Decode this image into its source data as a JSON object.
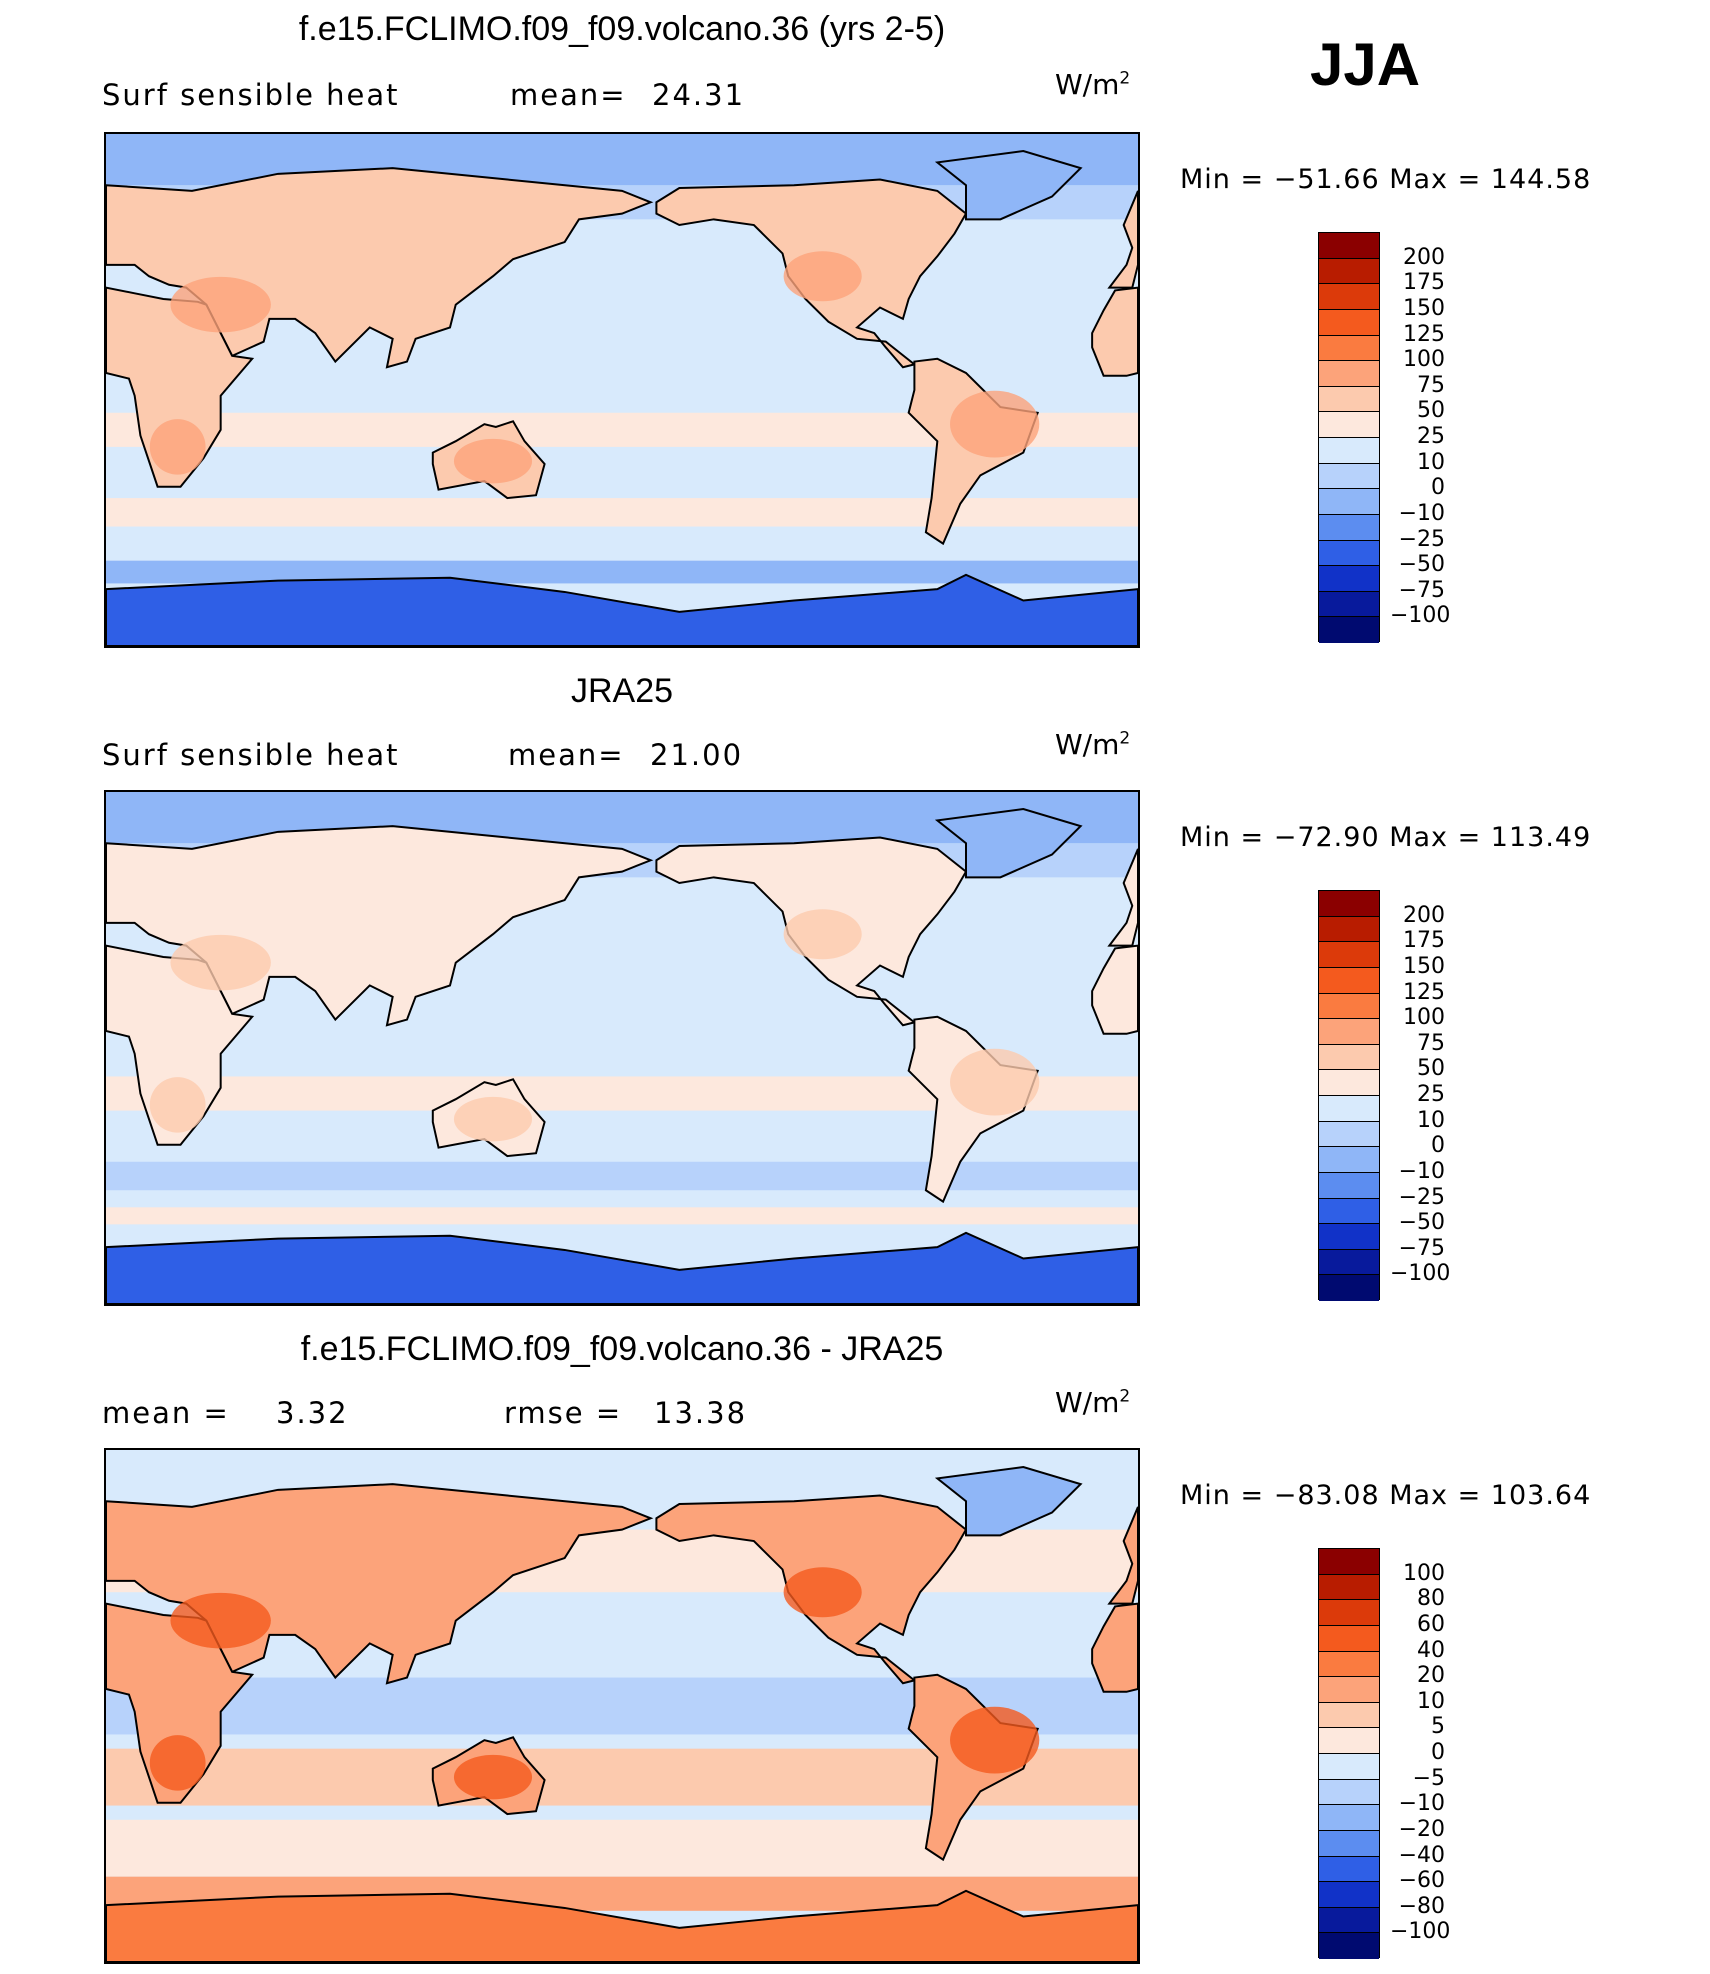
{
  "season": "JJA",
  "panels": [
    {
      "title": "f.e15.FCLIMO.f09_f09.volcano.36 (yrs 2-5)",
      "left_label": "Surf  sensible  heat",
      "stat_label": "mean=",
      "stat_value": "24.31",
      "unit_base": "W/m",
      "unit_exp": "2",
      "min_max": "Min  =  −51.66  Max  =  144.58",
      "colorbar": {
        "labels": [
          "200",
          "175",
          "150",
          "125",
          "100",
          "75",
          "50",
          "25",
          "10",
          "0",
          "−10",
          "−25",
          "−50",
          "−75",
          "−100"
        ],
        "colors": [
          "#8b0000",
          "#b81c00",
          "#dc3a0a",
          "#f45a1e",
          "#fa7b40",
          "#fca37a",
          "#fccaae",
          "#fde8dd",
          "#d8eafc",
          "#b7d2fb",
          "#8fb6f7",
          "#5c8df0",
          "#2f5fe6",
          "#1132c8",
          "#081a9c",
          "#000a70"
        ]
      }
    },
    {
      "title": "JRA25",
      "left_label": "Surf  sensible  heat",
      "stat_label": "mean=",
      "stat_value": "21.00",
      "unit_base": "W/m",
      "unit_exp": "2",
      "min_max": "Min  =  −72.90  Max  =  113.49",
      "colorbar": {
        "labels": [
          "200",
          "175",
          "150",
          "125",
          "100",
          "75",
          "50",
          "25",
          "10",
          "0",
          "−10",
          "−25",
          "−50",
          "−75",
          "−100"
        ],
        "colors": [
          "#8b0000",
          "#b81c00",
          "#dc3a0a",
          "#f45a1e",
          "#fa7b40",
          "#fca37a",
          "#fccaae",
          "#fde8dd",
          "#d8eafc",
          "#b7d2fb",
          "#8fb6f7",
          "#5c8df0",
          "#2f5fe6",
          "#1132c8",
          "#081a9c",
          "#000a70"
        ]
      }
    },
    {
      "title": "f.e15.FCLIMO.f09_f09.volcano.36 - JRA25",
      "left_label": "mean  =",
      "left_value": "3.32",
      "stat_label": "rmse  =",
      "stat_value": "13.38",
      "unit_base": "W/m",
      "unit_exp": "2",
      "min_max": "Min  =  −83.08  Max  =  103.64",
      "colorbar": {
        "labels": [
          "100",
          "80",
          "60",
          "40",
          "20",
          "10",
          "5",
          "0",
          "−5",
          "−10",
          "−20",
          "−40",
          "−60",
          "−80",
          "−100"
        ],
        "colors": [
          "#8b0000",
          "#b81c00",
          "#dc3a0a",
          "#f45a1e",
          "#fa7b40",
          "#fca37a",
          "#fccaae",
          "#fde8dd",
          "#d8eafc",
          "#b7d2fb",
          "#8fb6f7",
          "#5c8df0",
          "#2f5fe6",
          "#1132c8",
          "#081a9c",
          "#000a70"
        ]
      }
    }
  ]
}
